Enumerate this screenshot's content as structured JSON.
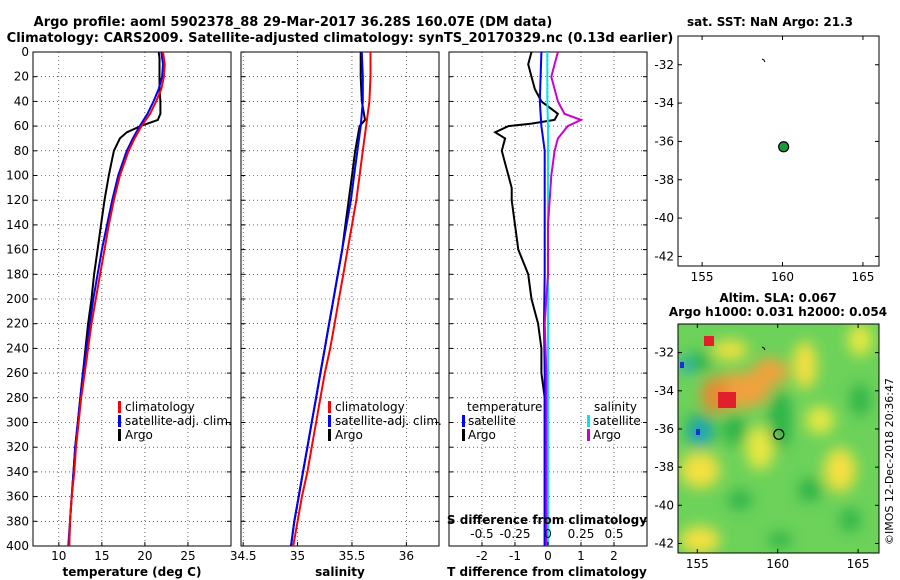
{
  "header": {
    "line1": "Argo profile: aoml 5902378_88 29-Mar-2017 36.28S 160.07E (DM data)",
    "line2": "Climatology: CARS2009. Satellite-adjusted climatology: synTS_20170329.nc (0.13d earlier)"
  },
  "colors": {
    "climatology": "#ff0000",
    "satellite": "#0000ff",
    "argo": "#000000",
    "sat_diff": "#00e5ee",
    "salinity_diff": "#cc00cc",
    "grid": "#000000"
  },
  "depth_ticks": [
    "0",
    "20",
    "40",
    "60",
    "80",
    "100",
    "120",
    "140",
    "160",
    "180",
    "200",
    "220",
    "240",
    "260",
    "280",
    "300",
    "320",
    "340",
    "360",
    "380",
    "400"
  ],
  "chart_data": [
    {
      "type": "line",
      "id": "temperature",
      "xlabel": "temperature (deg C)",
      "ylabel": "",
      "xlim": [
        7,
        30
      ],
      "ylim": [
        400,
        0
      ],
      "xticks": [
        "10",
        "15",
        "20",
        "25"
      ],
      "legend": [
        "climatology",
        "satellite-adj. clim.",
        "Argo"
      ],
      "series": [
        {
          "name": "Argo",
          "color": "#000000",
          "depth": [
            0,
            5,
            10,
            20,
            30,
            40,
            50,
            55,
            60,
            65,
            70,
            80,
            90,
            100,
            120,
            140,
            160,
            180,
            200,
            220,
            240,
            260,
            280,
            300,
            320,
            340,
            360,
            380,
            400
          ],
          "values": [
            21.6,
            21.7,
            21.7,
            21.7,
            21.7,
            21.8,
            21.8,
            21.5,
            19.5,
            17.9,
            17.1,
            16.4,
            16.1,
            15.8,
            15.3,
            14.9,
            14.5,
            14.1,
            13.8,
            13.4,
            13.1,
            12.8,
            12.5,
            12.2,
            11.9,
            11.7,
            11.5,
            11.3,
            11.2
          ]
        },
        {
          "name": "satellite-adj. clim.",
          "color": "#0000ff",
          "depth": [
            0,
            10,
            20,
            30,
            40,
            50,
            60,
            70,
            80,
            100,
            120,
            140,
            160,
            180,
            200,
            220,
            240,
            260,
            280,
            300,
            320,
            340,
            360,
            380,
            400
          ],
          "values": [
            21.9,
            22.1,
            22.0,
            21.6,
            21.0,
            20.3,
            19.4,
            18.6,
            17.9,
            16.9,
            16.2,
            15.6,
            15.0,
            14.5,
            14.0,
            13.6,
            13.2,
            12.8,
            12.5,
            12.2,
            11.9,
            11.7,
            11.5,
            11.3,
            11.1
          ]
        },
        {
          "name": "climatology",
          "color": "#ff0000",
          "depth": [
            0,
            10,
            20,
            30,
            40,
            50,
            60,
            70,
            80,
            100,
            120,
            140,
            160,
            180,
            200,
            220,
            240,
            260,
            280,
            300,
            320,
            340,
            360,
            380,
            400
          ],
          "values": [
            22.1,
            22.3,
            22.2,
            21.9,
            21.3,
            20.6,
            19.6,
            18.8,
            18.1,
            17.1,
            16.4,
            15.8,
            15.3,
            14.8,
            14.3,
            13.8,
            13.4,
            13.0,
            12.6,
            12.3,
            12.0,
            11.8,
            11.5,
            11.3,
            11.2
          ]
        }
      ]
    },
    {
      "type": "line",
      "id": "salinity",
      "xlabel": "salinity",
      "xlim": [
        34.48,
        36.3
      ],
      "ylim": [
        400,
        0
      ],
      "xticks": [
        "34.5",
        "35",
        "35.5",
        "36"
      ],
      "legend": [
        "climatology",
        "satellite-adj. clim.",
        "Argo"
      ],
      "series": [
        {
          "name": "Argo",
          "color": "#000000",
          "depth": [
            0,
            20,
            40,
            55,
            60,
            70,
            80,
            100,
            120,
            140,
            160,
            180,
            200,
            220,
            240,
            260,
            280,
            300,
            320,
            340,
            360,
            380,
            400
          ],
          "values": [
            35.58,
            35.58,
            35.59,
            35.62,
            35.57,
            35.55,
            35.53,
            35.5,
            35.47,
            35.44,
            35.41,
            35.37,
            35.33,
            35.29,
            35.25,
            35.21,
            35.17,
            35.13,
            35.09,
            35.05,
            35.01,
            34.97,
            34.94
          ]
        },
        {
          "name": "satellite-adj. clim.",
          "color": "#0000ff",
          "depth": [
            0,
            20,
            40,
            60,
            80,
            100,
            120,
            140,
            160,
            180,
            200,
            220,
            240,
            260,
            280,
            300,
            320,
            340,
            360,
            380,
            400
          ],
          "values": [
            35.59,
            35.6,
            35.6,
            35.58,
            35.55,
            35.52,
            35.49,
            35.45,
            35.41,
            35.37,
            35.33,
            35.29,
            35.25,
            35.21,
            35.17,
            35.13,
            35.09,
            35.05,
            35.01,
            34.97,
            34.94
          ]
        },
        {
          "name": "climatology",
          "color": "#ff0000",
          "depth": [
            0,
            20,
            40,
            60,
            80,
            100,
            120,
            140,
            160,
            180,
            200,
            220,
            240,
            260,
            280,
            300,
            320,
            340,
            360,
            380,
            400
          ],
          "values": [
            35.67,
            35.67,
            35.66,
            35.63,
            35.6,
            35.57,
            35.54,
            35.5,
            35.46,
            35.42,
            35.38,
            35.34,
            35.3,
            35.25,
            35.21,
            35.17,
            35.13,
            35.09,
            35.04,
            35.0,
            34.96
          ]
        }
      ]
    },
    {
      "type": "line",
      "id": "difference",
      "xlabel": "T difference from climatology",
      "toplabel": "S difference from climatology",
      "xlim": [
        -3,
        3
      ],
      "ylim": [
        400,
        0
      ],
      "xticks": [
        "-2",
        "-1",
        "0",
        "1",
        "2"
      ],
      "stickticks": [
        "-0.5",
        "-0.25",
        "0",
        "0.25",
        "0.5"
      ],
      "legend_temp_title": "temperature",
      "legend_sal_title": "salinity",
      "legend_temp": [
        "satellite",
        "Argo"
      ],
      "legend_sal": [
        "satellite",
        "Argo"
      ],
      "series": [
        {
          "name": "T Argo",
          "color": "#000000",
          "depth": [
            0,
            10,
            20,
            30,
            40,
            50,
            55,
            58,
            60,
            65,
            70,
            80,
            90,
            100,
            110,
            120,
            140,
            160,
            180,
            200,
            220,
            240,
            260,
            280,
            300,
            320,
            340,
            360,
            380,
            400
          ],
          "values": [
            -0.5,
            -0.6,
            -0.5,
            -0.4,
            -0.2,
            0.3,
            0.2,
            -0.5,
            -1.2,
            -1.6,
            -1.3,
            -1.4,
            -1.3,
            -1.2,
            -1.1,
            -1.1,
            -1.0,
            -0.9,
            -0.6,
            -0.5,
            -0.3,
            -0.2,
            -0.2,
            -0.1,
            -0.1,
            -0.1,
            -0.1,
            -0.1,
            -0.1,
            -0.1
          ]
        },
        {
          "name": "T satellite",
          "color": "#0000ff",
          "depth": [
            0,
            40,
            60,
            80,
            100,
            140,
            180,
            220,
            260,
            300,
            340,
            380,
            400
          ],
          "values": [
            -0.2,
            -0.25,
            -0.2,
            -0.1,
            -0.1,
            -0.1,
            -0.1,
            -0.12,
            -0.1,
            -0.1,
            -0.1,
            -0.1,
            -0.1
          ]
        },
        {
          "name": "S satellite",
          "color": "#00e5ee",
          "depth": [
            0,
            40,
            60,
            100,
            200,
            300,
            400
          ],
          "values": [
            -0.02,
            -0.02,
            0.0,
            0.0,
            0.0,
            0.0,
            0.0
          ]
        },
        {
          "name": "S Argo",
          "color": "#cc00cc",
          "depth": [
            0,
            10,
            20,
            30,
            40,
            50,
            55,
            60,
            70,
            80,
            100,
            140,
            180,
            220,
            260,
            300,
            340,
            380,
            400
          ],
          "values": [
            0.3,
            0.2,
            0.1,
            0.2,
            0.3,
            0.5,
            1.0,
            0.6,
            0.3,
            0.2,
            0.1,
            0.0,
            0.0,
            -0.1,
            -0.05,
            -0.05,
            -0.05,
            -0.05,
            -0.05
          ]
        }
      ]
    },
    {
      "type": "scatter",
      "id": "sst_map",
      "title": "sat. SST: NaN Argo: 21.3",
      "xlim": [
        153.5,
        166
      ],
      "ylim": [
        -42.5,
        -30.5
      ],
      "xticks": [
        "155",
        "160",
        "165"
      ],
      "yticks": [
        "-32",
        "-34",
        "-36",
        "-38",
        "-40",
        "-42"
      ],
      "x": [
        160.07
      ],
      "y": [
        -36.28
      ]
    },
    {
      "type": "heatmap",
      "id": "sla_map",
      "title1": "Altim. SLA: 0.067",
      "title2": "Argo h1000: 0.031 h2000: 0.054",
      "xlim": [
        153.8,
        166.3
      ],
      "ylim": [
        -42.5,
        -30.5
      ],
      "xticks": [
        "155",
        "160",
        "165"
      ],
      "yticks": [
        "-32",
        "-34",
        "-36",
        "-38",
        "-40",
        "-42"
      ],
      "x": [
        160.07
      ],
      "y": [
        -36.28
      ]
    }
  ],
  "stamp": "©IMOS 12-Dec-2018 20:36:47"
}
